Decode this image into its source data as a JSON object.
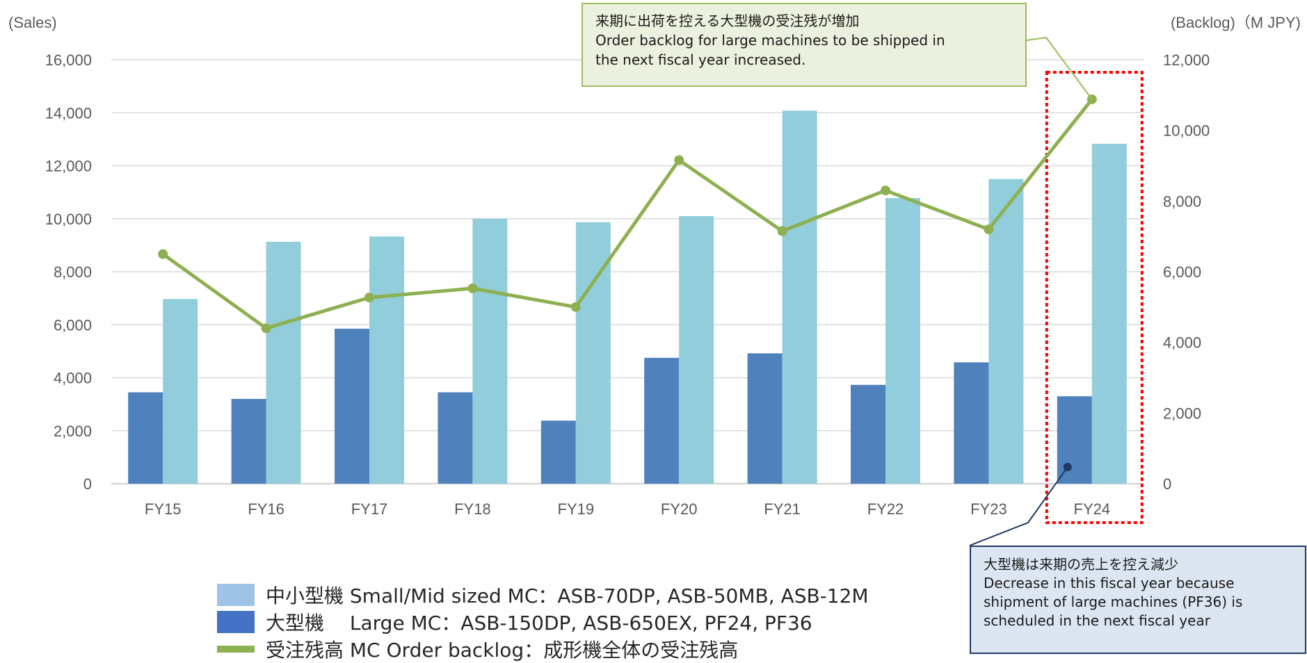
{
  "chart_data": {
    "type": "bar",
    "categories": [
      "FY15",
      "FY16",
      "FY17",
      "FY18",
      "FY19",
      "FY20",
      "FY21",
      "FY22",
      "FY23",
      "FY24"
    ],
    "series": [
      {
        "kind": "bar",
        "axis": "left",
        "color": "#4f81bd",
        "values": [
          3450,
          3200,
          5850,
          3450,
          2380,
          4750,
          4920,
          3730,
          4580,
          3300
        ]
      },
      {
        "kind": "bar",
        "axis": "left",
        "color": "#92cddc",
        "values": [
          6970,
          9130,
          9330,
          10000,
          9870,
          10100,
          14080,
          10780,
          11500,
          12830
        ]
      },
      {
        "kind": "line",
        "axis": "right",
        "color": "#8db050",
        "values": [
          6500,
          4400,
          5270,
          5530,
          5000,
          9160,
          7150,
          8300,
          7200,
          10880
        ]
      }
    ],
    "ylim": [
      0,
      16000
    ],
    "y2lim": [
      0,
      12000
    ],
    "left_ticks": [
      "0",
      "2,000",
      "4,000",
      "6,000",
      "8,000",
      "10,000",
      "12,000",
      "14,000",
      "16,000"
    ],
    "right_ticks": [
      "0",
      "2,000",
      "4,000",
      "6,000",
      "8,000",
      "10,000",
      "12,000"
    ],
    "left_unit": "(Sales)",
    "right_unit": "(Backlog)（M JPY)",
    "grid": true,
    "highlight_category": "FY24",
    "highlight_color": "#ff0000"
  },
  "callouts": {
    "top": {
      "line1": "来期に出荷を控える大型機の受注残が増加",
      "line2": "Order backlog for large machines to be shipped in",
      "line3": "the next fiscal year increased."
    },
    "bottom": {
      "line1": "大型機は来期の売上を控え減少",
      "line2": "Decrease in this fiscal year because",
      "line3": "shipment of large machines (PF36) is",
      "line4": "scheduled in the next fiscal year"
    }
  },
  "legend": {
    "small_mid": "中小型機 Small/Mid sized MC：ASB-70DP, ASB-50MB, ASB-12M",
    "large": "大型機　 Large MC：ASB-150DP, ASB-650EX, PF24, PF36",
    "backlog": "受注残高 MC Order backlog：成形機全体の受注残高"
  }
}
